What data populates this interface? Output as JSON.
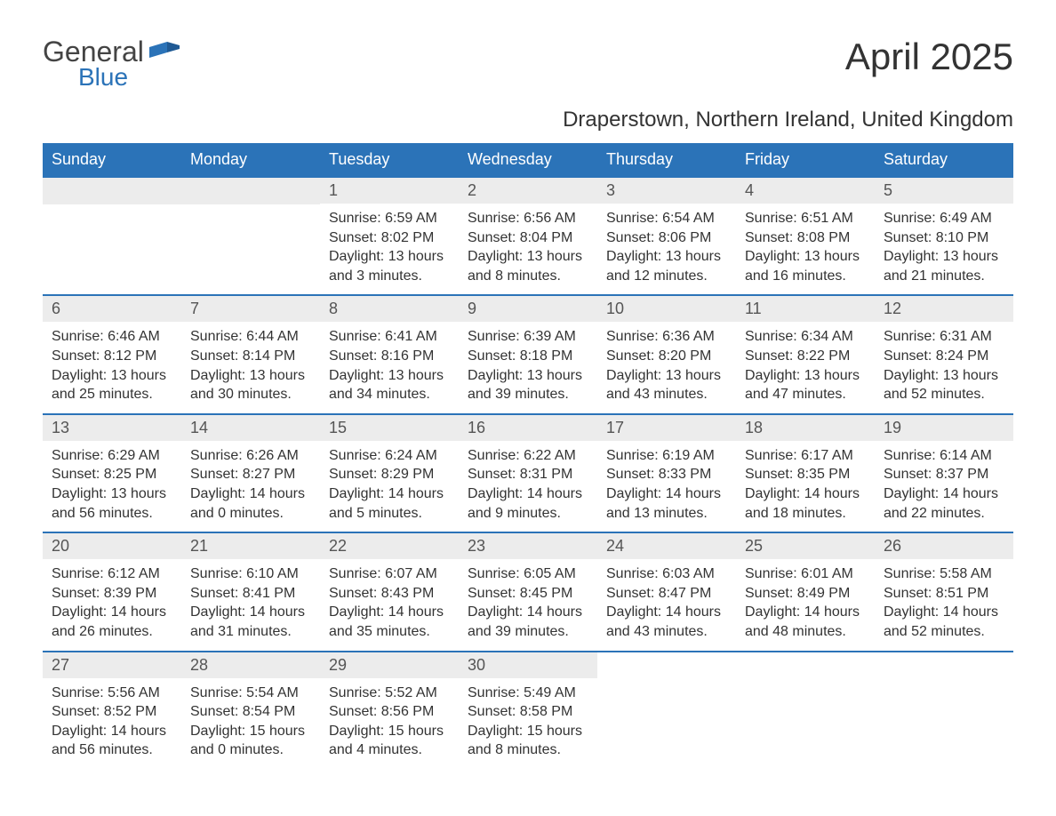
{
  "logo": {
    "word1": "General",
    "word2": "Blue"
  },
  "title": "April 2025",
  "subtitle": "Draperstown, Northern Ireland, United Kingdom",
  "colors": {
    "header_bg": "#2b73b8",
    "header_text": "#ffffff",
    "daynum_bg": "#ececec",
    "row_border": "#2b73b8",
    "body_text": "#333333",
    "logo_gray": "#444444",
    "logo_blue": "#2b73b8"
  },
  "daysOfWeek": [
    "Sunday",
    "Monday",
    "Tuesday",
    "Wednesday",
    "Thursday",
    "Friday",
    "Saturday"
  ],
  "startOffset": 2,
  "days": [
    {
      "n": 1,
      "sunrise": "6:59 AM",
      "sunset": "8:02 PM",
      "daylight": "13 hours and 3 minutes."
    },
    {
      "n": 2,
      "sunrise": "6:56 AM",
      "sunset": "8:04 PM",
      "daylight": "13 hours and 8 minutes."
    },
    {
      "n": 3,
      "sunrise": "6:54 AM",
      "sunset": "8:06 PM",
      "daylight": "13 hours and 12 minutes."
    },
    {
      "n": 4,
      "sunrise": "6:51 AM",
      "sunset": "8:08 PM",
      "daylight": "13 hours and 16 minutes."
    },
    {
      "n": 5,
      "sunrise": "6:49 AM",
      "sunset": "8:10 PM",
      "daylight": "13 hours and 21 minutes."
    },
    {
      "n": 6,
      "sunrise": "6:46 AM",
      "sunset": "8:12 PM",
      "daylight": "13 hours and 25 minutes."
    },
    {
      "n": 7,
      "sunrise": "6:44 AM",
      "sunset": "8:14 PM",
      "daylight": "13 hours and 30 minutes."
    },
    {
      "n": 8,
      "sunrise": "6:41 AM",
      "sunset": "8:16 PM",
      "daylight": "13 hours and 34 minutes."
    },
    {
      "n": 9,
      "sunrise": "6:39 AM",
      "sunset": "8:18 PM",
      "daylight": "13 hours and 39 minutes."
    },
    {
      "n": 10,
      "sunrise": "6:36 AM",
      "sunset": "8:20 PM",
      "daylight": "13 hours and 43 minutes."
    },
    {
      "n": 11,
      "sunrise": "6:34 AM",
      "sunset": "8:22 PM",
      "daylight": "13 hours and 47 minutes."
    },
    {
      "n": 12,
      "sunrise": "6:31 AM",
      "sunset": "8:24 PM",
      "daylight": "13 hours and 52 minutes."
    },
    {
      "n": 13,
      "sunrise": "6:29 AM",
      "sunset": "8:25 PM",
      "daylight": "13 hours and 56 minutes."
    },
    {
      "n": 14,
      "sunrise": "6:26 AM",
      "sunset": "8:27 PM",
      "daylight": "14 hours and 0 minutes."
    },
    {
      "n": 15,
      "sunrise": "6:24 AM",
      "sunset": "8:29 PM",
      "daylight": "14 hours and 5 minutes."
    },
    {
      "n": 16,
      "sunrise": "6:22 AM",
      "sunset": "8:31 PM",
      "daylight": "14 hours and 9 minutes."
    },
    {
      "n": 17,
      "sunrise": "6:19 AM",
      "sunset": "8:33 PM",
      "daylight": "14 hours and 13 minutes."
    },
    {
      "n": 18,
      "sunrise": "6:17 AM",
      "sunset": "8:35 PM",
      "daylight": "14 hours and 18 minutes."
    },
    {
      "n": 19,
      "sunrise": "6:14 AM",
      "sunset": "8:37 PM",
      "daylight": "14 hours and 22 minutes."
    },
    {
      "n": 20,
      "sunrise": "6:12 AM",
      "sunset": "8:39 PM",
      "daylight": "14 hours and 26 minutes."
    },
    {
      "n": 21,
      "sunrise": "6:10 AM",
      "sunset": "8:41 PM",
      "daylight": "14 hours and 31 minutes."
    },
    {
      "n": 22,
      "sunrise": "6:07 AM",
      "sunset": "8:43 PM",
      "daylight": "14 hours and 35 minutes."
    },
    {
      "n": 23,
      "sunrise": "6:05 AM",
      "sunset": "8:45 PM",
      "daylight": "14 hours and 39 minutes."
    },
    {
      "n": 24,
      "sunrise": "6:03 AM",
      "sunset": "8:47 PM",
      "daylight": "14 hours and 43 minutes."
    },
    {
      "n": 25,
      "sunrise": "6:01 AM",
      "sunset": "8:49 PM",
      "daylight": "14 hours and 48 minutes."
    },
    {
      "n": 26,
      "sunrise": "5:58 AM",
      "sunset": "8:51 PM",
      "daylight": "14 hours and 52 minutes."
    },
    {
      "n": 27,
      "sunrise": "5:56 AM",
      "sunset": "8:52 PM",
      "daylight": "14 hours and 56 minutes."
    },
    {
      "n": 28,
      "sunrise": "5:54 AM",
      "sunset": "8:54 PM",
      "daylight": "15 hours and 0 minutes."
    },
    {
      "n": 29,
      "sunrise": "5:52 AM",
      "sunset": "8:56 PM",
      "daylight": "15 hours and 4 minutes."
    },
    {
      "n": 30,
      "sunrise": "5:49 AM",
      "sunset": "8:58 PM",
      "daylight": "15 hours and 8 minutes."
    }
  ],
  "labels": {
    "sunrise": "Sunrise: ",
    "sunset": "Sunset: ",
    "daylight": "Daylight: "
  }
}
